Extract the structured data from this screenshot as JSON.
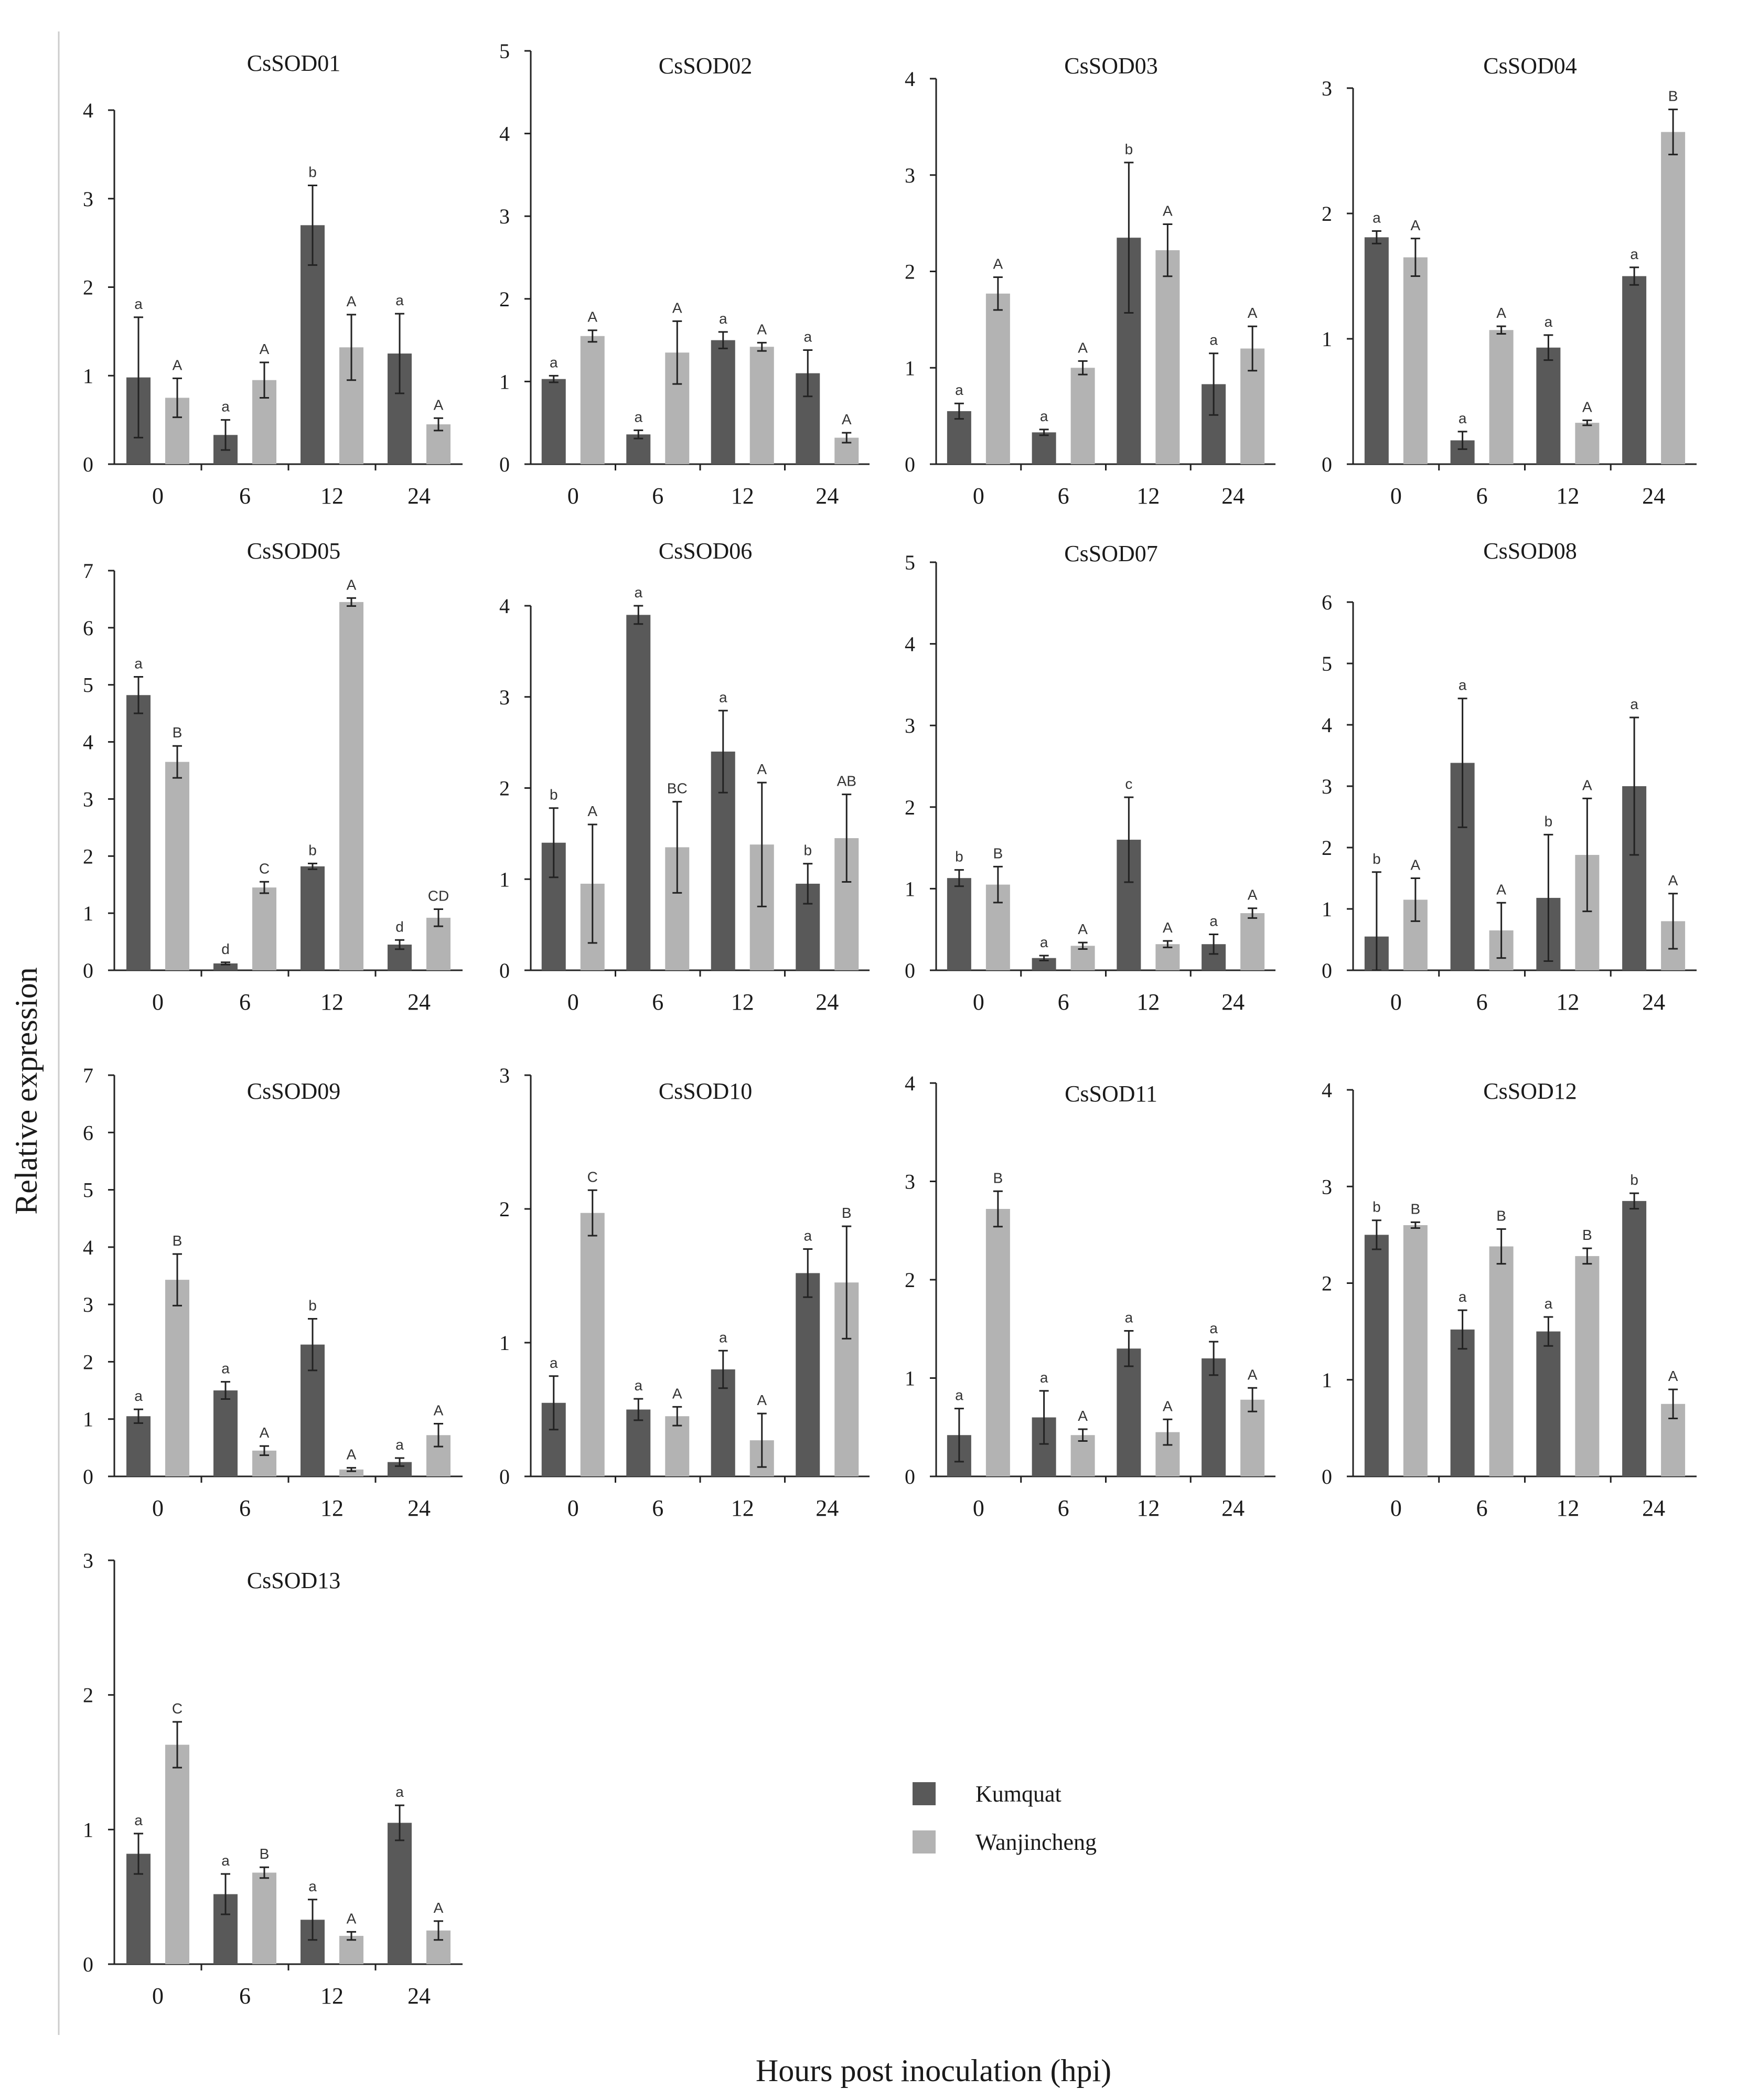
{
  "figure": {
    "ylabel": "Relative expression",
    "xlabel": "Hours post inoculation (hpi)"
  },
  "legend": [
    {
      "name": "Kumquat",
      "color": "#595959"
    },
    {
      "name": "Wanjincheng",
      "color": "#b3b3b3"
    }
  ],
  "colors": {
    "kumquat": "#595959",
    "wanjincheng": "#b3b3b3",
    "axis": "#222222"
  },
  "chart_data": [
    {
      "type": "bar",
      "title": "CsSOD01",
      "categories": [
        "0",
        "6",
        "12",
        "24"
      ],
      "ylim": [
        0,
        4
      ],
      "yticks": [
        "0",
        "1",
        "2",
        "3",
        "4"
      ],
      "series": [
        {
          "name": "Kumquat",
          "values": [
            0.98,
            0.33,
            2.7,
            1.25
          ],
          "errors": [
            0.68,
            0.17,
            0.45,
            0.45
          ],
          "labels": [
            "a",
            "a",
            "b",
            "a"
          ]
        },
        {
          "name": "Wanjincheng",
          "values": [
            0.75,
            0.95,
            1.32,
            0.45
          ],
          "errors": [
            0.22,
            0.2,
            0.37,
            0.07
          ],
          "labels": [
            "A",
            "A",
            "A",
            "A"
          ]
        }
      ]
    },
    {
      "type": "bar",
      "title": "CsSOD02",
      "categories": [
        "0",
        "6",
        "12",
        "24"
      ],
      "ylim": [
        0,
        5
      ],
      "yticks": [
        "0",
        "1",
        "2",
        "3",
        "4",
        "5"
      ],
      "series": [
        {
          "name": "Kumquat",
          "values": [
            1.03,
            0.36,
            1.5,
            1.1
          ],
          "errors": [
            0.04,
            0.05,
            0.1,
            0.28
          ],
          "labels": [
            "a",
            "a",
            "a",
            "a"
          ]
        },
        {
          "name": "Wanjincheng",
          "values": [
            1.55,
            1.35,
            1.42,
            0.32
          ],
          "errors": [
            0.07,
            0.38,
            0.05,
            0.06
          ],
          "labels": [
            "A",
            "A",
            "A",
            "A"
          ]
        }
      ]
    },
    {
      "type": "bar",
      "title": "CsSOD03",
      "categories": [
        "0",
        "6",
        "12",
        "24"
      ],
      "ylim": [
        0,
        4
      ],
      "yticks": [
        "0",
        "1",
        "2",
        "3",
        "4"
      ],
      "series": [
        {
          "name": "Kumquat",
          "values": [
            0.55,
            0.33,
            2.35,
            0.83
          ],
          "errors": [
            0.08,
            0.03,
            0.78,
            0.32
          ],
          "labels": [
            "a",
            "a",
            "b",
            "a"
          ]
        },
        {
          "name": "Wanjincheng",
          "values": [
            1.77,
            1.0,
            2.22,
            1.2
          ],
          "errors": [
            0.17,
            0.07,
            0.27,
            0.23
          ],
          "labels": [
            "A",
            "A",
            "A",
            "A"
          ]
        }
      ]
    },
    {
      "type": "bar",
      "title": "CsSOD04",
      "categories": [
        "0",
        "6",
        "12",
        "24"
      ],
      "ylim": [
        0,
        3
      ],
      "yticks": [
        "0",
        "1",
        "2",
        "3"
      ],
      "series": [
        {
          "name": "Kumquat",
          "values": [
            1.81,
            0.19,
            0.93,
            1.5
          ],
          "errors": [
            0.05,
            0.07,
            0.1,
            0.07
          ],
          "labels": [
            "a",
            "a",
            "a",
            "a"
          ]
        },
        {
          "name": "Wanjincheng",
          "values": [
            1.65,
            1.07,
            0.33,
            2.65
          ],
          "errors": [
            0.15,
            0.03,
            0.02,
            0.18
          ],
          "labels": [
            "A",
            "A",
            "A",
            "B"
          ]
        }
      ]
    },
    {
      "type": "bar",
      "title": "CsSOD05",
      "categories": [
        "0",
        "6",
        "12",
        "24"
      ],
      "ylim": [
        0,
        7
      ],
      "yticks": [
        "0",
        "1",
        "2",
        "3",
        "4",
        "5",
        "6",
        "7"
      ],
      "series": [
        {
          "name": "Kumquat",
          "values": [
            4.82,
            0.12,
            1.82,
            0.45
          ],
          "errors": [
            0.32,
            0.02,
            0.05,
            0.08
          ],
          "labels": [
            "a",
            "d",
            "b",
            "d"
          ]
        },
        {
          "name": "Wanjincheng",
          "values": [
            3.65,
            1.45,
            6.45,
            0.92
          ],
          "errors": [
            0.28,
            0.1,
            0.07,
            0.15
          ],
          "labels": [
            "B",
            "C",
            "A",
            "CD"
          ]
        }
      ]
    },
    {
      "type": "bar",
      "title": "CsSOD06",
      "categories": [
        "0",
        "6",
        "12",
        "24"
      ],
      "ylim": [
        0,
        4
      ],
      "yticks": [
        "0",
        "1",
        "2",
        "3",
        "4"
      ],
      "series": [
        {
          "name": "Kumquat",
          "values": [
            1.4,
            3.9,
            2.4,
            0.95
          ],
          "errors": [
            0.38,
            0.1,
            0.45,
            0.22
          ],
          "labels": [
            "b",
            "a",
            "a",
            "b"
          ]
        },
        {
          "name": "Wanjincheng",
          "values": [
            0.95,
            1.35,
            1.38,
            1.45
          ],
          "errors": [
            0.65,
            0.5,
            0.68,
            0.48
          ],
          "labels": [
            "A",
            "BC",
            "A",
            "AB"
          ]
        }
      ]
    },
    {
      "type": "bar",
      "title": "CsSOD07",
      "categories": [
        "0",
        "6",
        "12",
        "24"
      ],
      "ylim": [
        0,
        5
      ],
      "yticks": [
        "0",
        "1",
        "2",
        "3",
        "4",
        "5"
      ],
      "series": [
        {
          "name": "Kumquat",
          "values": [
            1.13,
            0.15,
            1.6,
            0.32
          ],
          "errors": [
            0.1,
            0.03,
            0.52,
            0.12
          ],
          "labels": [
            "b",
            "a",
            "c",
            "a"
          ]
        },
        {
          "name": "Wanjincheng",
          "values": [
            1.05,
            0.3,
            0.32,
            0.7
          ],
          "errors": [
            0.22,
            0.04,
            0.04,
            0.06
          ],
          "labels": [
            "B",
            "A",
            "A",
            "A"
          ]
        }
      ]
    },
    {
      "type": "bar",
      "title": "CsSOD08",
      "categories": [
        "0",
        "6",
        "12",
        "24"
      ],
      "ylim": [
        0,
        6
      ],
      "yticks": [
        "0",
        "1",
        "2",
        "3",
        "4",
        "5",
        "6"
      ],
      "series": [
        {
          "name": "Kumquat",
          "values": [
            0.55,
            3.38,
            1.18,
            3.0
          ],
          "errors": [
            1.05,
            1.05,
            1.03,
            1.12
          ],
          "labels": [
            "b",
            "a",
            "b",
            "a"
          ]
        },
        {
          "name": "Wanjincheng",
          "values": [
            1.15,
            0.65,
            1.88,
            0.8
          ],
          "errors": [
            0.35,
            0.45,
            0.92,
            0.45
          ],
          "labels": [
            "A",
            "A",
            "A",
            "A"
          ]
        }
      ]
    },
    {
      "type": "bar",
      "title": "CsSOD09",
      "categories": [
        "0",
        "6",
        "12",
        "24"
      ],
      "ylim": [
        0,
        7
      ],
      "yticks": [
        "0",
        "1",
        "2",
        "3",
        "4",
        "5",
        "6",
        "7"
      ],
      "series": [
        {
          "name": "Kumquat",
          "values": [
            1.05,
            1.5,
            2.3,
            0.25
          ],
          "errors": [
            0.12,
            0.15,
            0.45,
            0.07
          ],
          "labels": [
            "a",
            "a",
            "b",
            "a"
          ]
        },
        {
          "name": "Wanjincheng",
          "values": [
            3.43,
            0.45,
            0.12,
            0.72
          ],
          "errors": [
            0.45,
            0.08,
            0.03,
            0.2
          ],
          "labels": [
            "B",
            "A",
            "A",
            "A"
          ]
        }
      ]
    },
    {
      "type": "bar",
      "title": "CsSOD10",
      "categories": [
        "0",
        "6",
        "12",
        "24"
      ],
      "ylim": [
        0,
        3
      ],
      "yticks": [
        "0",
        "1",
        "2",
        "3"
      ],
      "series": [
        {
          "name": "Kumquat",
          "values": [
            0.55,
            0.5,
            0.8,
            1.52
          ],
          "errors": [
            0.2,
            0.08,
            0.14,
            0.18
          ],
          "labels": [
            "a",
            "a",
            "a",
            "a"
          ]
        },
        {
          "name": "Wanjincheng",
          "values": [
            1.97,
            0.45,
            0.27,
            1.45
          ],
          "errors": [
            0.17,
            0.07,
            0.2,
            0.42
          ],
          "labels": [
            "C",
            "A",
            "A",
            "B"
          ]
        }
      ]
    },
    {
      "type": "bar",
      "title": "CsSOD11",
      "categories": [
        "0",
        "6",
        "12",
        "24"
      ],
      "ylim": [
        0,
        4
      ],
      "yticks": [
        "0",
        "1",
        "2",
        "3",
        "4"
      ],
      "series": [
        {
          "name": "Kumquat",
          "values": [
            0.42,
            0.6,
            1.3,
            1.2
          ],
          "errors": [
            0.27,
            0.27,
            0.18,
            0.17
          ],
          "labels": [
            "a",
            "a",
            "a",
            "a"
          ]
        },
        {
          "name": "Wanjincheng",
          "values": [
            2.72,
            0.42,
            0.45,
            0.78
          ],
          "errors": [
            0.18,
            0.06,
            0.13,
            0.12
          ],
          "labels": [
            "B",
            "A",
            "A",
            "A"
          ]
        }
      ]
    },
    {
      "type": "bar",
      "title": "CsSOD12",
      "categories": [
        "0",
        "6",
        "12",
        "24"
      ],
      "ylim": [
        0,
        4
      ],
      "yticks": [
        "0",
        "1",
        "2",
        "3",
        "4"
      ],
      "series": [
        {
          "name": "Kumquat",
          "values": [
            2.5,
            1.52,
            1.5,
            2.85
          ],
          "errors": [
            0.15,
            0.2,
            0.15,
            0.08
          ],
          "labels": [
            "b",
            "a",
            "a",
            "b"
          ]
        },
        {
          "name": "Wanjincheng",
          "values": [
            2.6,
            2.38,
            2.28,
            0.75
          ],
          "errors": [
            0.03,
            0.18,
            0.08,
            0.15
          ],
          "labels": [
            "B",
            "B",
            "B",
            "A"
          ]
        }
      ]
    },
    {
      "type": "bar",
      "title": "CsSOD13",
      "categories": [
        "0",
        "6",
        "12",
        "24"
      ],
      "ylim": [
        0,
        3
      ],
      "yticks": [
        "0",
        "1",
        "2",
        "3"
      ],
      "series": [
        {
          "name": "Kumquat",
          "values": [
            0.82,
            0.52,
            0.33,
            1.05
          ],
          "errors": [
            0.15,
            0.15,
            0.15,
            0.13
          ],
          "labels": [
            "a",
            "a",
            "a",
            "a"
          ]
        },
        {
          "name": "Wanjincheng",
          "values": [
            1.63,
            0.68,
            0.21,
            0.25
          ],
          "errors": [
            0.17,
            0.04,
            0.03,
            0.07
          ],
          "labels": [
            "C",
            "B",
            "A",
            "A"
          ]
        }
      ]
    }
  ]
}
